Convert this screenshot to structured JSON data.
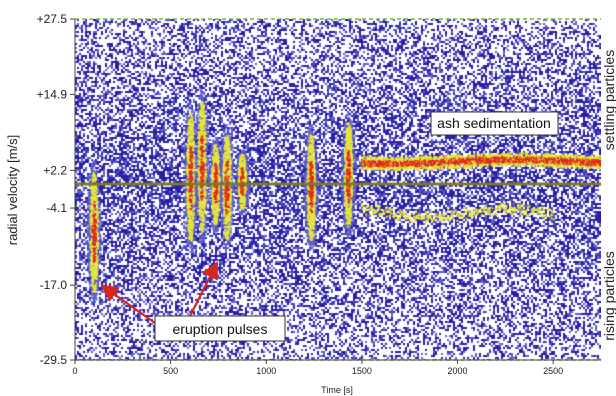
{
  "chart_data": {
    "type": "heatmap",
    "title": "",
    "xlabel": "Time [s]",
    "ylabel": "radial velocity [m/s]",
    "xlim": [
      0,
      2750
    ],
    "ylim": [
      -29.5,
      27.5
    ],
    "x_ticks": [
      "0",
      "500",
      "1000",
      "1500",
      "2000",
      "2500"
    ],
    "x_tick_values": [
      0,
      500,
      1000,
      1500,
      2000,
      2500
    ],
    "y_ticks": [
      "+27.5",
      "+14.9",
      "+2.2",
      "-4.1",
      "-17.0",
      "-29.5"
    ],
    "y_tick_values": [
      27.5,
      14.9,
      2.2,
      -4.1,
      -17.0,
      -29.5
    ],
    "colors": {
      "background": "#ffffff",
      "noise": "#2b1fa6",
      "low": "#5d5fc9",
      "mid": "#e6e63a",
      "high": "#e2281c",
      "zero_line": "#7a7a2a",
      "frame_dash": "#6fbf3a",
      "arrow": "#d9261c"
    },
    "events": [
      {
        "x": 95,
        "v_min": -20,
        "v_max": 4,
        "intensity": 0.9
      },
      {
        "x": 600,
        "v_min": -12,
        "v_max": 14,
        "intensity": 0.85
      },
      {
        "x": 660,
        "v_min": -10,
        "v_max": 16,
        "intensity": 0.95
      },
      {
        "x": 730,
        "v_min": -8,
        "v_max": 8,
        "intensity": 0.7
      },
      {
        "x": 790,
        "v_min": -11,
        "v_max": 10,
        "intensity": 0.8
      },
      {
        "x": 870,
        "v_min": -5,
        "v_max": 6,
        "intensity": 0.6
      },
      {
        "x": 1230,
        "v_min": -11,
        "v_max": 10,
        "intensity": 0.95
      },
      {
        "x": 1425,
        "v_min": -9,
        "v_max": 12,
        "intensity": 0.9
      }
    ],
    "sedimentation_band": {
      "x_start": 1500,
      "x_end": 2750,
      "v_center": 3.8,
      "intensity": 0.95
    },
    "rising_band": {
      "x_start": 1500,
      "x_end": 2500,
      "v_center": -4.8,
      "intensity": 0.45
    },
    "annotations": {
      "ash_sedimentation": "ash sedimentation",
      "eruption_pulses": "eruption pulses",
      "settling_particles": "settling particles",
      "rising_particles": "rising particles"
    }
  }
}
